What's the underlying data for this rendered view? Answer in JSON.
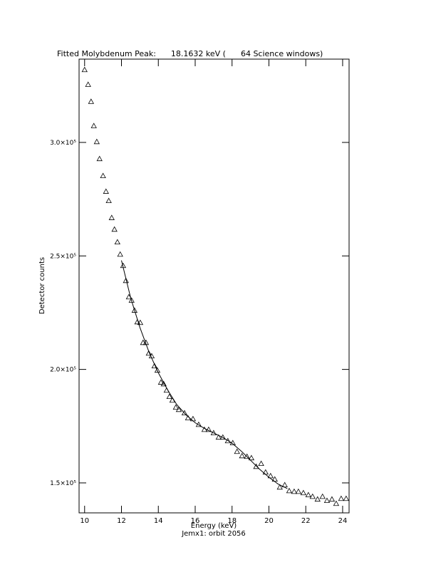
{
  "chart_data": {
    "type": "scatter",
    "title": "Fitted Molybdenum Peak:      18.1632 keV (      64 Science windows)",
    "xlabel": "Energy (keV)",
    "ylabel": "Detector counts",
    "footnote": "Jemx1: orbit 2056",
    "xlim": [
      9.7,
      24.35
    ],
    "ylim": [
      136800,
      336700
    ],
    "xticks": [
      10,
      12,
      14,
      16,
      18,
      20,
      22,
      24
    ],
    "yticks": [
      {
        "value": 150000,
        "label": "1.5×10⁵"
      },
      {
        "value": 200000,
        "label": "2.0×10⁵"
      },
      {
        "value": 250000,
        "label": "2.5×10⁵"
      },
      {
        "value": 300000,
        "label": "3.0×10⁵"
      }
    ],
    "color": "#000000",
    "series": [
      {
        "marker": "triangle",
        "x": [
          10.0,
          10.19,
          10.35,
          10.5,
          10.66,
          10.81,
          11.0,
          11.16,
          11.31,
          11.47,
          11.62,
          11.78,
          11.93,
          12.09,
          12.24,
          12.4,
          12.55,
          12.71,
          12.86,
          13.02,
          13.17,
          13.33,
          13.48,
          13.64,
          13.79,
          13.95,
          14.14,
          14.29,
          14.45,
          14.6,
          14.76,
          14.95,
          15.11,
          15.42,
          15.61,
          15.88,
          16.19,
          16.5,
          16.73,
          17.0,
          17.27,
          17.5,
          17.77,
          18.04,
          18.27,
          18.54,
          18.81,
          19.05,
          19.31,
          19.58,
          19.82,
          20.09,
          20.32,
          20.59,
          20.86,
          21.1,
          21.37,
          21.6,
          21.87,
          22.14,
          22.37,
          22.64,
          22.91,
          23.15,
          23.42,
          23.65,
          23.92,
          24.19
        ],
        "values": [
          332000,
          325500,
          318000,
          307300,
          300300,
          292800,
          285300,
          278400,
          274300,
          266800,
          261700,
          256100,
          250700,
          245700,
          239100,
          231900,
          230400,
          226000,
          220900,
          220600,
          211800,
          211800,
          207100,
          205900,
          201500,
          199600,
          194300,
          193600,
          190800,
          188000,
          186400,
          183300,
          182300,
          180800,
          178600,
          178200,
          175700,
          173500,
          173500,
          172000,
          170100,
          170100,
          168500,
          167600,
          163800,
          161900,
          161600,
          161000,
          157200,
          158500,
          154700,
          153100,
          151600,
          148100,
          149100,
          146500,
          146200,
          146200,
          145600,
          144700,
          144000,
          142800,
          144000,
          142200,
          142800,
          140900,
          143100,
          143100
        ]
      },
      {
        "marker": "line",
        "x": [
          12.0,
          12.5,
          13.0,
          13.5,
          14.0,
          14.5,
          15.0,
          15.5,
          16.0,
          16.5,
          17.0,
          17.5,
          18.0,
          18.5,
          19.0,
          19.5,
          20.0,
          20.5,
          21.0
        ],
        "values": [
          248000,
          231500,
          218500,
          207500,
          198500,
          191000,
          184500,
          180000,
          176500,
          174000,
          172000,
          170000,
          167500,
          164000,
          160000,
          156000,
          152500,
          149500,
          147500
        ]
      }
    ]
  }
}
